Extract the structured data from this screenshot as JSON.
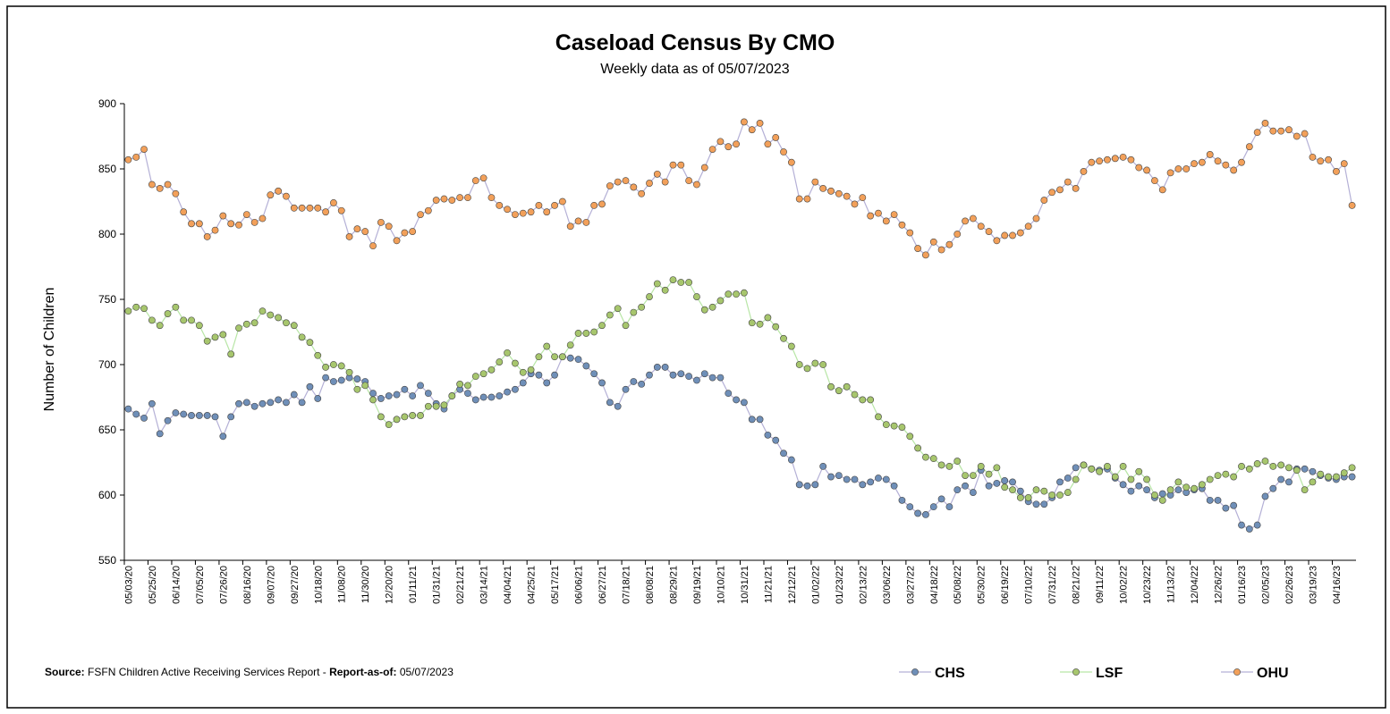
{
  "chart_data": {
    "type": "line",
    "title": "Caseload Census By CMO",
    "subtitle": "Weekly data as of 05/07/2023",
    "y_label": "Number of Children",
    "categories": [
      "05/03/20",
      null,
      null,
      "05/25/20",
      null,
      null,
      "06/14/20",
      null,
      null,
      "07/05/20",
      null,
      null,
      "07/26/20",
      null,
      null,
      "08/16/20",
      null,
      null,
      "09/07/20",
      null,
      null,
      "09/27/20",
      null,
      null,
      "10/18/20",
      null,
      null,
      "11/08/20",
      null,
      null,
      "11/30/20",
      null,
      null,
      "12/20/20",
      null,
      null,
      "01/11/21",
      null,
      null,
      "01/31/21",
      null,
      null,
      "02/21/21",
      null,
      null,
      "03/14/21",
      null,
      null,
      "04/04/21",
      null,
      null,
      "04/25/21",
      null,
      null,
      "05/17/21",
      null,
      null,
      "06/06/21",
      null,
      null,
      "06/27/21",
      null,
      null,
      "07/18/21",
      null,
      null,
      "08/08/21",
      null,
      null,
      "08/29/21",
      null,
      null,
      "09/19/21",
      null,
      null,
      "10/10/21",
      null,
      null,
      "10/31/21",
      null,
      null,
      "11/21/21",
      null,
      null,
      "12/12/21",
      null,
      null,
      "01/02/22",
      null,
      null,
      "01/23/22",
      null,
      null,
      "02/13/22",
      null,
      null,
      "03/06/22",
      null,
      null,
      "03/27/22",
      null,
      null,
      "04/18/22",
      null,
      null,
      "05/08/22",
      null,
      null,
      "05/30/22",
      null,
      null,
      "06/19/22",
      null,
      null,
      "07/10/22",
      null,
      null,
      "07/31/22",
      null,
      null,
      "08/21/22",
      null,
      null,
      "09/11/22",
      null,
      null,
      "10/02/22",
      null,
      null,
      "10/23/22",
      null,
      null,
      "11/13/22",
      null,
      null,
      "12/04/22",
      null,
      null,
      "12/26/22",
      null,
      null,
      "01/16/23",
      null,
      null,
      "02/05/23",
      null,
      null,
      "02/26/23",
      null,
      null,
      "03/19/23",
      null,
      null,
      "04/16/23",
      null,
      null
    ],
    "series": [
      {
        "name": "CHS",
        "color": "#6f8fb8",
        "line_color": "#b4b0d6",
        "values": [
          666,
          662,
          659,
          670,
          647,
          657,
          663,
          662,
          661,
          661,
          661,
          660,
          645,
          660,
          670,
          671,
          668,
          670,
          671,
          673,
          671,
          677,
          671,
          683,
          674,
          690,
          687,
          688,
          690,
          689,
          687,
          678,
          674,
          676,
          677,
          681,
          676,
          684,
          678,
          670,
          666,
          676,
          681,
          678,
          673,
          675,
          675,
          676,
          679,
          681,
          686,
          693,
          692,
          686,
          692,
          706,
          705,
          704,
          699,
          693,
          686,
          671,
          668,
          681,
          687,
          685,
          692,
          698,
          698,
          692,
          693,
          691,
          688,
          693,
          690,
          690,
          678,
          673,
          671,
          658,
          658,
          646,
          642,
          632,
          627,
          608,
          607,
          608,
          622,
          614,
          615,
          612,
          612,
          608,
          610,
          613,
          612,
          607,
          596,
          591,
          586,
          585,
          591,
          597,
          591,
          604,
          607,
          602,
          619,
          607,
          609,
          611,
          610,
          603,
          595,
          593,
          593,
          598,
          610,
          613,
          621,
          623,
          620,
          619,
          620,
          613,
          608,
          603,
          607,
          604,
          598,
          601,
          600,
          604,
          602,
          604,
          605,
          596,
          596,
          590,
          592,
          577,
          574,
          577,
          599,
          605,
          612,
          610,
          620,
          620,
          618,
          615,
          613,
          612,
          614,
          614
        ]
      },
      {
        "name": "LSF",
        "color": "#a7c66d",
        "line_color": "#b8e6a6",
        "values": [
          741,
          744,
          743,
          734,
          730,
          739,
          744,
          734,
          734,
          730,
          718,
          721,
          723,
          708,
          728,
          731,
          732,
          741,
          738,
          736,
          732,
          730,
          721,
          717,
          707,
          698,
          700,
          699,
          694,
          681,
          684,
          673,
          660,
          654,
          658,
          660,
          661,
          661,
          668,
          668,
          669,
          676,
          685,
          684,
          691,
          693,
          696,
          702,
          709,
          701,
          694,
          696,
          706,
          714,
          706,
          706,
          715,
          724,
          724,
          725,
          730,
          738,
          743,
          730,
          740,
          744,
          752,
          762,
          757,
          765,
          763,
          763,
          752,
          742,
          744,
          749,
          754,
          754,
          755,
          732,
          731,
          736,
          729,
          720,
          714,
          700,
          697,
          701,
          700,
          683,
          680,
          683,
          677,
          673,
          673,
          660,
          654,
          653,
          652,
          645,
          636,
          629,
          628,
          623,
          622,
          626,
          615,
          615,
          622,
          616,
          621,
          606,
          604,
          598,
          598,
          604,
          603,
          600,
          600,
          602,
          612,
          623,
          620,
          618,
          622,
          614,
          622,
          612,
          618,
          612,
          600,
          596,
          604,
          610,
          606,
          605,
          608,
          612,
          615,
          616,
          614,
          622,
          620,
          624,
          626,
          622,
          623,
          621,
          619,
          604,
          610,
          616,
          614,
          614,
          617,
          621
        ]
      },
      {
        "name": "OHU",
        "color": "#f2a05a",
        "line_color": "#b4b0d6",
        "values": [
          857,
          859,
          865,
          838,
          835,
          838,
          831,
          817,
          808,
          808,
          798,
          803,
          814,
          808,
          807,
          815,
          809,
          812,
          830,
          833,
          829,
          820,
          820,
          820,
          820,
          817,
          824,
          818,
          798,
          804,
          802,
          791,
          809,
          806,
          795,
          801,
          802,
          815,
          818,
          826,
          827,
          826,
          828,
          828,
          841,
          843,
          828,
          822,
          819,
          815,
          816,
          817,
          822,
          817,
          822,
          825,
          806,
          810,
          809,
          822,
          823,
          837,
          840,
          841,
          836,
          831,
          839,
          846,
          840,
          853,
          853,
          841,
          838,
          851,
          865,
          871,
          867,
          869,
          886,
          880,
          885,
          869,
          874,
          863,
          855,
          827,
          827,
          840,
          835,
          833,
          831,
          829,
          823,
          828,
          814,
          816,
          810,
          815,
          807,
          801,
          789,
          784,
          794,
          788,
          792,
          800,
          810,
          812,
          806,
          802,
          795,
          799,
          799,
          801,
          806,
          812,
          826,
          832,
          834,
          840,
          835,
          848,
          855,
          856,
          857,
          858,
          859,
          857,
          851,
          849,
          841,
          834,
          847,
          850,
          850,
          854,
          855,
          861,
          856,
          853,
          849,
          855,
          867,
          878,
          885,
          879,
          879,
          880,
          875,
          877,
          859,
          856,
          857,
          848,
          854,
          822
        ]
      }
    ],
    "ylim": [
      550,
      900
    ],
    "yticks": [
      550,
      600,
      650,
      700,
      750,
      800,
      850,
      900
    ],
    "source": {
      "label": "Source:",
      "text": "FSFN Children Active Receiving Services Report -",
      "label2": "Report-as-of:",
      "date": "05/07/2023"
    }
  }
}
